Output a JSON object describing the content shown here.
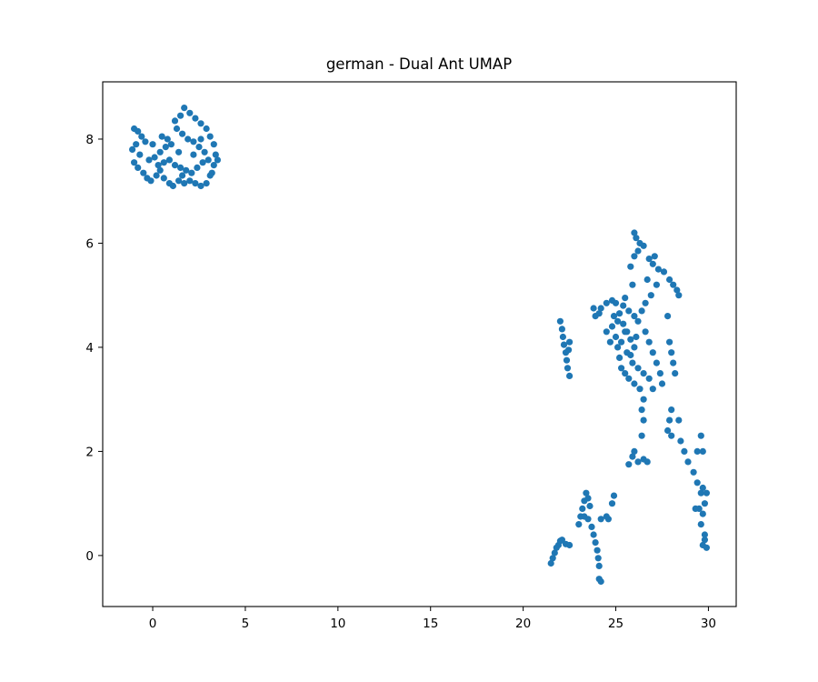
{
  "chart_data": {
    "type": "scatter",
    "title": "german - Dual Ant UMAP",
    "xlabel": "",
    "ylabel": "",
    "xlim": [
      -2.7,
      31.5
    ],
    "ylim": [
      -0.98,
      9.1
    ],
    "xticks": [
      0,
      5,
      10,
      15,
      20,
      25,
      30
    ],
    "yticks": [
      0,
      2,
      4,
      6,
      8
    ],
    "grid": false,
    "legend": "none",
    "colors": {
      "points": "#1f77b4",
      "axes": "#000000",
      "background": "#ffffff"
    },
    "series": [
      {
        "points": [
          [
            -1.0,
            8.2
          ],
          [
            -0.8,
            8.15
          ],
          [
            -0.6,
            8.05
          ],
          [
            -0.9,
            7.9
          ],
          [
            -1.1,
            7.8
          ],
          [
            -0.7,
            7.7
          ],
          [
            -1.0,
            7.55
          ],
          [
            -0.8,
            7.45
          ],
          [
            -0.5,
            7.35
          ],
          [
            -0.3,
            7.25
          ],
          [
            -0.1,
            7.2
          ],
          [
            0.2,
            7.3
          ],
          [
            0.4,
            7.4
          ],
          [
            0.6,
            7.25
          ],
          [
            0.9,
            7.15
          ],
          [
            1.1,
            7.1
          ],
          [
            1.4,
            7.2
          ],
          [
            1.7,
            7.15
          ],
          [
            2.0,
            7.2
          ],
          [
            2.3,
            7.15
          ],
          [
            2.6,
            7.1
          ],
          [
            2.9,
            7.15
          ],
          [
            3.1,
            7.3
          ],
          [
            3.3,
            7.5
          ],
          [
            3.4,
            7.7
          ],
          [
            3.3,
            7.9
          ],
          [
            3.1,
            8.05
          ],
          [
            2.9,
            8.2
          ],
          [
            2.6,
            8.3
          ],
          [
            2.3,
            8.4
          ],
          [
            2.0,
            8.5
          ],
          [
            1.7,
            8.6
          ],
          [
            1.5,
            8.45
          ],
          [
            1.2,
            8.35
          ],
          [
            1.3,
            8.2
          ],
          [
            1.6,
            8.1
          ],
          [
            1.9,
            8.0
          ],
          [
            2.2,
            7.95
          ],
          [
            2.5,
            7.85
          ],
          [
            2.8,
            7.75
          ],
          [
            1.0,
            7.9
          ],
          [
            0.7,
            7.85
          ],
          [
            0.4,
            7.75
          ],
          [
            0.1,
            7.65
          ],
          [
            -0.2,
            7.6
          ],
          [
            0.3,
            7.5
          ],
          [
            0.6,
            7.55
          ],
          [
            0.9,
            7.6
          ],
          [
            1.2,
            7.5
          ],
          [
            1.5,
            7.45
          ],
          [
            1.8,
            7.4
          ],
          [
            2.1,
            7.35
          ],
          [
            2.4,
            7.45
          ],
          [
            2.7,
            7.55
          ],
          [
            3.0,
            7.6
          ],
          [
            0.8,
            8.0
          ],
          [
            1.4,
            7.75
          ],
          [
            2.2,
            7.7
          ],
          [
            0.0,
            7.9
          ],
          [
            -0.4,
            7.95
          ],
          [
            3.5,
            7.6
          ],
          [
            3.2,
            7.35
          ],
          [
            1.6,
            7.3
          ],
          [
            0.5,
            8.05
          ],
          [
            2.6,
            8.0
          ]
        ]
      },
      {
        "points": [
          [
            21.5,
            -0.15
          ],
          [
            21.6,
            -0.05
          ],
          [
            21.7,
            0.05
          ],
          [
            21.8,
            0.15
          ],
          [
            21.9,
            0.2
          ],
          [
            22.0,
            0.28
          ],
          [
            22.1,
            0.3
          ],
          [
            22.3,
            0.22
          ],
          [
            22.5,
            0.2
          ],
          [
            22.0,
            4.5
          ],
          [
            22.1,
            4.35
          ],
          [
            22.15,
            4.2
          ],
          [
            22.2,
            4.05
          ],
          [
            22.3,
            3.9
          ],
          [
            22.35,
            3.75
          ],
          [
            22.4,
            3.6
          ],
          [
            22.5,
            3.45
          ],
          [
            22.5,
            4.1
          ],
          [
            22.45,
            3.95
          ],
          [
            23.0,
            0.6
          ],
          [
            23.1,
            0.75
          ],
          [
            23.2,
            0.9
          ],
          [
            23.3,
            1.05
          ],
          [
            23.4,
            1.2
          ],
          [
            23.5,
            1.1
          ],
          [
            23.6,
            0.95
          ],
          [
            23.5,
            0.7
          ],
          [
            23.7,
            0.55
          ],
          [
            23.8,
            0.4
          ],
          [
            23.9,
            0.25
          ],
          [
            24.0,
            0.1
          ],
          [
            24.05,
            -0.05
          ],
          [
            24.1,
            -0.2
          ],
          [
            24.1,
            -0.45
          ],
          [
            24.2,
            -0.5
          ],
          [
            24.2,
            0.7
          ],
          [
            24.5,
            0.75
          ],
          [
            24.8,
            1.0
          ],
          [
            24.9,
            1.15
          ],
          [
            23.9,
            4.6
          ],
          [
            24.2,
            4.75
          ],
          [
            24.5,
            4.85
          ],
          [
            24.8,
            4.9
          ],
          [
            25.0,
            4.85
          ],
          [
            25.2,
            4.65
          ],
          [
            25.4,
            4.45
          ],
          [
            25.6,
            4.3
          ],
          [
            25.8,
            4.15
          ],
          [
            26.0,
            4.0
          ],
          [
            24.5,
            4.3
          ],
          [
            24.8,
            4.4
          ],
          [
            25.0,
            4.2
          ],
          [
            25.1,
            4.0
          ],
          [
            25.2,
            3.8
          ],
          [
            25.3,
            3.6
          ],
          [
            25.5,
            3.5
          ],
          [
            25.7,
            3.4
          ],
          [
            26.0,
            3.3
          ],
          [
            26.3,
            3.2
          ],
          [
            26.5,
            3.0
          ],
          [
            26.4,
            2.8
          ],
          [
            26.5,
            2.6
          ],
          [
            26.4,
            2.3
          ],
          [
            26.2,
            1.8
          ],
          [
            26.5,
            1.85
          ],
          [
            26.7,
            1.8
          ],
          [
            25.9,
            1.9
          ],
          [
            25.7,
            1.75
          ],
          [
            26.0,
            2.0
          ],
          [
            26.0,
            6.2
          ],
          [
            26.1,
            6.1
          ],
          [
            26.3,
            6.0
          ],
          [
            26.5,
            5.95
          ],
          [
            26.2,
            5.85
          ],
          [
            26.0,
            5.75
          ],
          [
            25.8,
            5.55
          ],
          [
            26.8,
            5.7
          ],
          [
            27.0,
            5.6
          ],
          [
            27.3,
            5.5
          ],
          [
            27.6,
            5.45
          ],
          [
            27.9,
            5.3
          ],
          [
            28.1,
            5.2
          ],
          [
            28.3,
            5.1
          ],
          [
            28.4,
            5.0
          ],
          [
            27.2,
            5.2
          ],
          [
            26.9,
            5.0
          ],
          [
            26.6,
            4.85
          ],
          [
            26.4,
            4.7
          ],
          [
            26.2,
            4.5
          ],
          [
            26.6,
            4.3
          ],
          [
            26.8,
            4.1
          ],
          [
            27.0,
            3.9
          ],
          [
            27.2,
            3.7
          ],
          [
            27.4,
            3.5
          ],
          [
            27.5,
            3.3
          ],
          [
            26.0,
            4.6
          ],
          [
            25.7,
            4.7
          ],
          [
            25.5,
            4.95
          ],
          [
            25.9,
            5.2
          ],
          [
            27.8,
            4.6
          ],
          [
            27.9,
            4.1
          ],
          [
            28.0,
            3.9
          ],
          [
            28.1,
            3.7
          ],
          [
            28.2,
            3.5
          ],
          [
            28.0,
            2.8
          ],
          [
            27.9,
            2.6
          ],
          [
            27.8,
            2.4
          ],
          [
            28.0,
            2.3
          ],
          [
            28.4,
            2.6
          ],
          [
            28.5,
            2.2
          ],
          [
            28.7,
            2.0
          ],
          [
            28.9,
            1.8
          ],
          [
            29.2,
            1.6
          ],
          [
            29.4,
            1.4
          ],
          [
            29.6,
            1.2
          ],
          [
            29.8,
            1.0
          ],
          [
            29.7,
            0.8
          ],
          [
            29.6,
            0.6
          ],
          [
            29.8,
            0.4
          ],
          [
            29.7,
            0.2
          ],
          [
            29.9,
            0.15
          ],
          [
            29.5,
            0.9
          ],
          [
            29.3,
            0.9
          ],
          [
            29.6,
            2.3
          ],
          [
            29.7,
            2.0
          ],
          [
            29.4,
            2.0
          ],
          [
            29.7,
            1.3
          ],
          [
            29.9,
            1.2
          ],
          [
            29.8,
            0.3
          ],
          [
            25.3,
            4.1
          ],
          [
            25.6,
            3.9
          ],
          [
            25.9,
            3.7
          ],
          [
            26.2,
            3.6
          ],
          [
            26.5,
            3.5
          ],
          [
            26.8,
            3.4
          ],
          [
            27.0,
            3.2
          ],
          [
            24.9,
            4.6
          ],
          [
            25.1,
            4.5
          ],
          [
            24.7,
            4.1
          ],
          [
            23.8,
            4.75
          ],
          [
            24.1,
            4.65
          ],
          [
            25.4,
            4.8
          ],
          [
            26.7,
            5.3
          ],
          [
            27.1,
            5.75
          ],
          [
            25.5,
            4.3
          ],
          [
            25.8,
            3.85
          ],
          [
            26.1,
            4.2
          ],
          [
            24.6,
            0.7
          ],
          [
            23.3,
            0.75
          ]
        ]
      }
    ]
  }
}
